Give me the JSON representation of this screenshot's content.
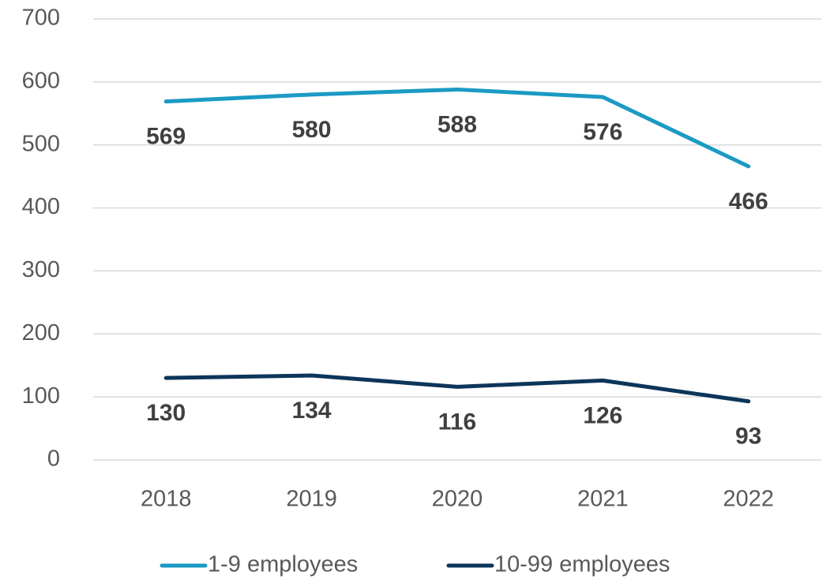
{
  "chart_data": {
    "type": "line",
    "categories": [
      "2018",
      "2019",
      "2020",
      "2021",
      "2022"
    ],
    "series": [
      {
        "name": "1-9 employees",
        "color": "#1b9ac4",
        "values": [
          569,
          580,
          588,
          576,
          466
        ]
      },
      {
        "name": "10-99 employees",
        "color": "#0c3559",
        "values": [
          130,
          134,
          116,
          126,
          93
        ]
      }
    ],
    "ylim": [
      0,
      700
    ],
    "yticks": [
      0,
      100,
      200,
      300,
      400,
      500,
      600,
      700
    ],
    "grid": true,
    "legend": "bottom"
  }
}
